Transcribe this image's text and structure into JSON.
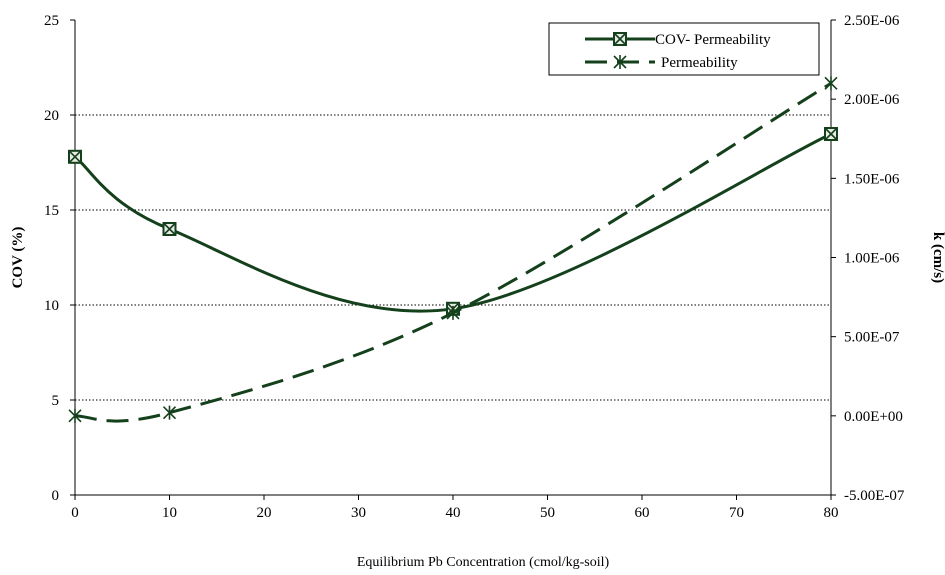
{
  "chart_data": {
    "type": "line",
    "xlabel": "Equilibrium Pb Concentration (cmol/kg-soil)",
    "ylabel": "COV (%)",
    "y2label": "k (cm/s)",
    "x_ticks": [
      "0",
      "10",
      "20",
      "30",
      "40",
      "50",
      "60",
      "70",
      "80"
    ],
    "y_ticks": [
      "0",
      "5",
      "10",
      "15",
      "20",
      "25"
    ],
    "y2_ticks": [
      "-5.00E-07",
      "0.00E+00",
      "5.00E-07",
      "1.00E-06",
      "1.50E-06",
      "2.00E-06",
      "2.50E-06"
    ],
    "xlim": [
      0,
      80
    ],
    "ylim": [
      0,
      25
    ],
    "y2lim": [
      -5e-07,
      2.5e-06
    ],
    "y_gridlines": [
      5,
      10,
      15,
      20
    ],
    "legend_position": "top-right",
    "series": [
      {
        "name": "COV- Permeability",
        "axis": "left",
        "style": "solid",
        "marker": "boxed-x",
        "color": "#14401c",
        "x": [
          0,
          10,
          40,
          80
        ],
        "y": [
          17.8,
          14.0,
          9.8,
          19.0
        ]
      },
      {
        "name": "Permeability",
        "axis": "right",
        "style": "dashed",
        "marker": "asterisk",
        "color": "#14401c",
        "x": [
          0,
          10,
          40,
          80
        ],
        "y": [
          0.0,
          2e-08,
          6.5e-07,
          2.1e-06
        ]
      }
    ]
  }
}
